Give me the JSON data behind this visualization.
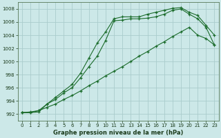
{
  "title": "Graphe pression niveau de la mer (hPa)",
  "bg_color": "#cce8e8",
  "grid_color": "#aacccc",
  "line_color": "#1a6b2a",
  "xlim": [
    -0.5,
    23.5
  ],
  "ylim": [
    991,
    1009
  ],
  "xticks": [
    0,
    1,
    2,
    3,
    4,
    5,
    6,
    7,
    8,
    9,
    10,
    11,
    12,
    13,
    14,
    15,
    16,
    17,
    18,
    19,
    20,
    21,
    22,
    23
  ],
  "yticks": [
    992,
    994,
    996,
    998,
    1000,
    1002,
    1004,
    1006,
    1008
  ],
  "series1_x": [
    0,
    1,
    2,
    3,
    4,
    5,
    6,
    7,
    8,
    9,
    10,
    11,
    12,
    13,
    14,
    15,
    16,
    17,
    18,
    19,
    20,
    21,
    22,
    23
  ],
  "series1_y": [
    992.2,
    992.2,
    992.3,
    993.5,
    994.2,
    995.2,
    996.0,
    997.5,
    999.2,
    1000.8,
    1003.2,
    1006.2,
    1006.3,
    1006.5,
    1006.5,
    1006.6,
    1006.8,
    1007.2,
    1007.8,
    1008.0,
    1007.2,
    1006.5,
    1005.2,
    1002.5
  ],
  "series2_x": [
    0,
    1,
    2,
    3,
    4,
    5,
    6,
    7,
    8,
    9,
    10,
    11,
    12,
    13,
    14,
    15,
    16,
    17,
    18,
    19,
    20,
    21,
    22,
    23
  ],
  "series2_y": [
    992.2,
    992.2,
    992.5,
    993.5,
    994.5,
    995.5,
    996.5,
    998.2,
    1000.5,
    1002.8,
    1004.5,
    1006.5,
    1006.8,
    1006.8,
    1006.8,
    1007.2,
    1007.5,
    1007.8,
    1008.1,
    1008.2,
    1007.5,
    1007.0,
    1005.5,
    1004.0
  ],
  "series3_x": [
    0,
    1,
    2,
    3,
    4,
    5,
    6,
    7,
    8,
    9,
    10,
    11,
    12,
    13,
    14,
    15,
    16,
    17,
    18,
    19,
    20,
    21,
    22,
    23
  ],
  "series3_y": [
    992.2,
    992.3,
    992.5,
    993.0,
    993.5,
    994.2,
    994.8,
    995.5,
    996.3,
    997.0,
    997.8,
    998.5,
    999.2,
    1000.0,
    1000.8,
    1001.5,
    1002.3,
    1003.0,
    1003.8,
    1004.5,
    1005.2,
    1004.0,
    1003.5,
    1002.5
  ],
  "title_fontsize": 6,
  "tick_fontsize": 5
}
